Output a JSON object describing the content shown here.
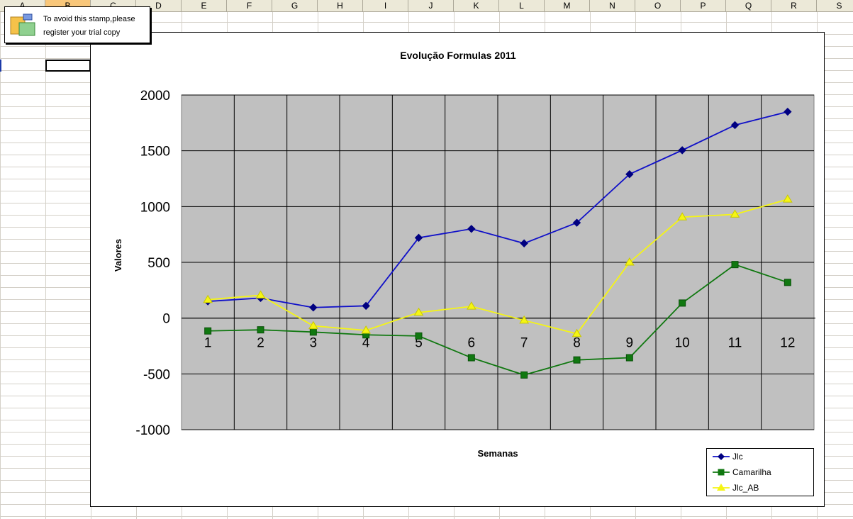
{
  "spreadsheet": {
    "columns": [
      "A",
      "B",
      "C",
      "D",
      "E",
      "F",
      "G",
      "H",
      "I",
      "J",
      "K",
      "L",
      "M",
      "N",
      "O",
      "P",
      "Q",
      "R",
      "S"
    ],
    "selected_column": "B"
  },
  "stamp": {
    "line1": "To avoid this stamp,please",
    "line2": "register your trial copy"
  },
  "chart_data": {
    "type": "line",
    "title": "Evolução Formulas 2011",
    "xlabel": "Semanas",
    "ylabel": "Valores",
    "categories": [
      "1",
      "2",
      "3",
      "4",
      "5",
      "6",
      "7",
      "8",
      "9",
      "10",
      "11",
      "12"
    ],
    "ylim": [
      -1000,
      2000
    ],
    "yticks": [
      2000,
      1500,
      1000,
      500,
      0,
      -500,
      -1000
    ],
    "grid": true,
    "legend_position": "bottom-right",
    "series": [
      {
        "name": "Jlc",
        "color": "#1010c8",
        "marker": "diamond",
        "values": [
          150,
          180,
          95,
          110,
          720,
          800,
          670,
          855,
          1290,
          1505,
          1730,
          1850
        ]
      },
      {
        "name": "Camarilha",
        "color": "#107810",
        "marker": "square",
        "values": [
          -115,
          -105,
          -125,
          -150,
          -160,
          -355,
          -510,
          -375,
          -355,
          135,
          480,
          320
        ]
      },
      {
        "name": "Jlc_AB",
        "color": "#f5f514",
        "marker": "triangle",
        "values": [
          165,
          205,
          -70,
          -110,
          50,
          105,
          -20,
          -140,
          500,
          905,
          930,
          1065
        ]
      }
    ]
  }
}
